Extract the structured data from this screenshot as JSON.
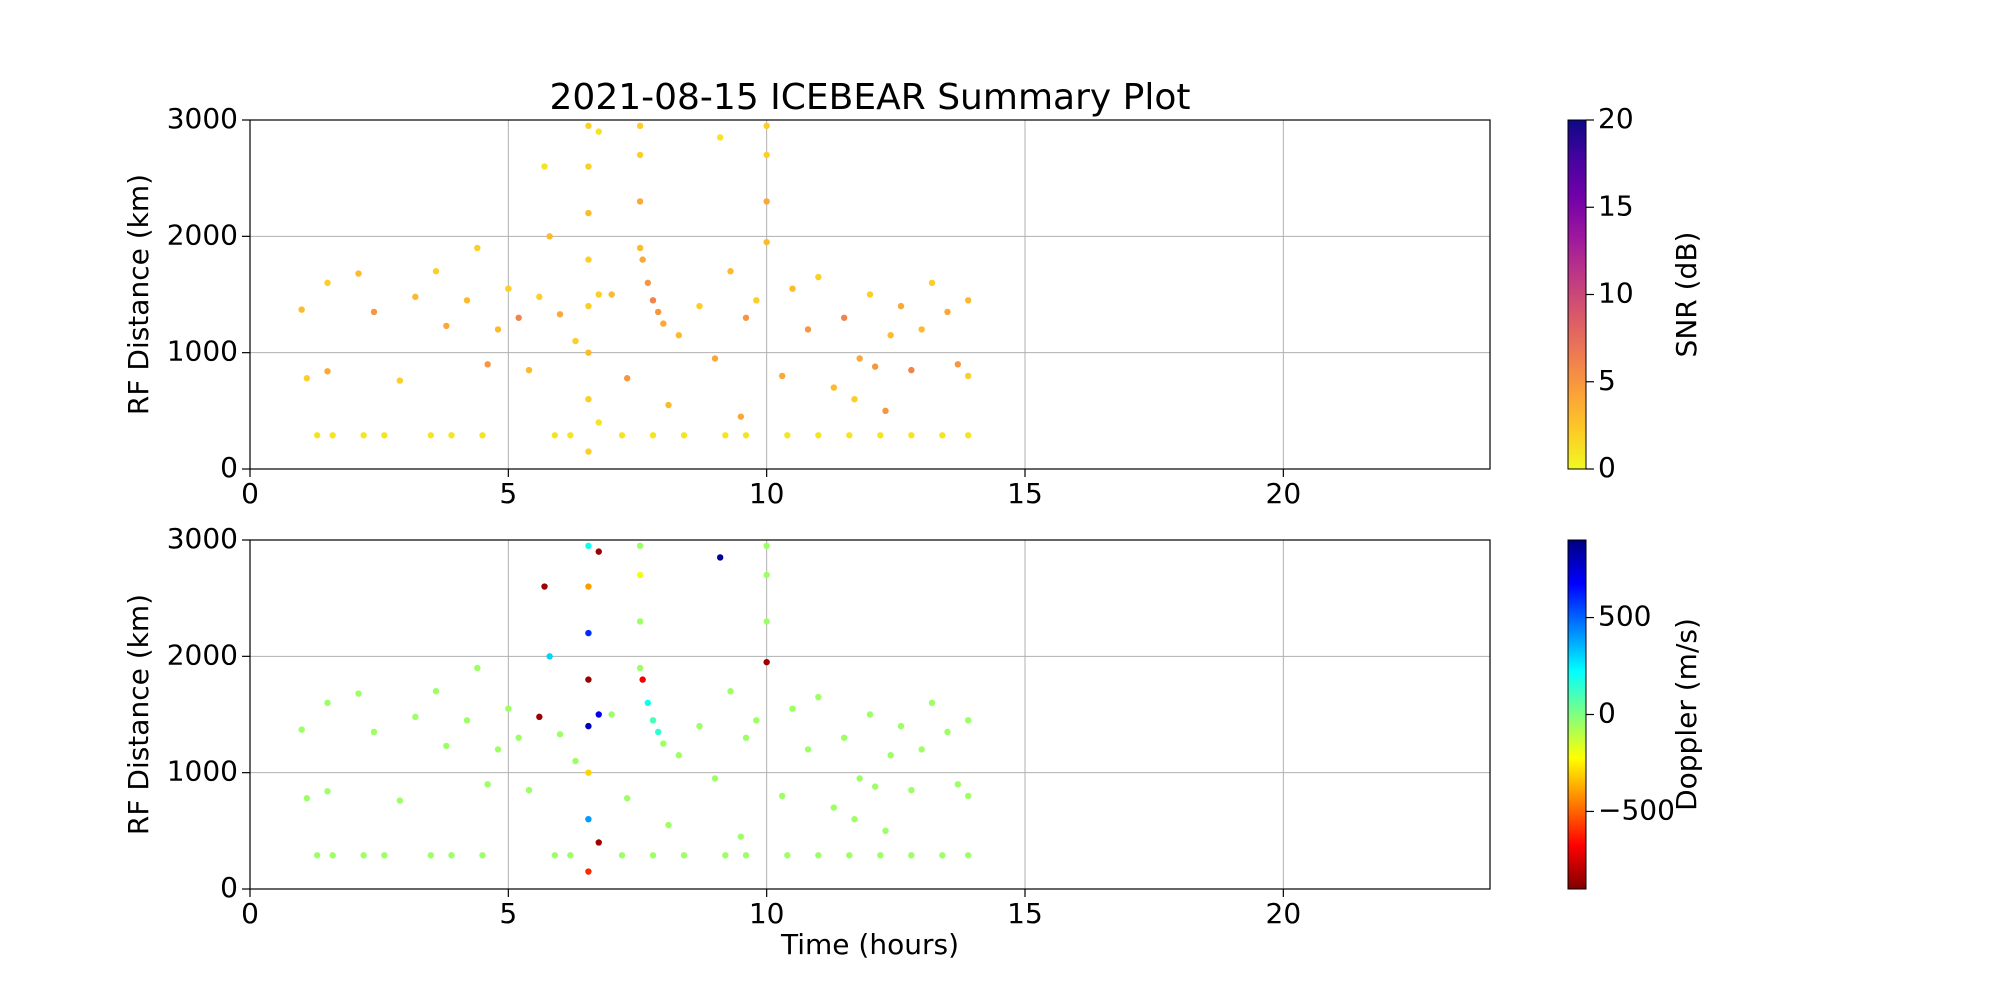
{
  "chart_data": [
    {
      "type": "scatter",
      "title": "2021-08-15 ICEBEAR Summary Plot",
      "ylabel": "RF Distance (km)",
      "xlim": [
        0,
        24
      ],
      "ylim": [
        0,
        3000
      ],
      "xticks": [
        0,
        5,
        10,
        15,
        20
      ],
      "yticks": [
        0,
        1000,
        2000,
        3000
      ],
      "grid": true,
      "x": [
        1.3,
        1.6,
        2.2,
        2.6,
        3.5,
        3.9,
        4.5,
        5.9,
        6.2,
        7.2,
        7.8,
        8.4,
        9.2,
        9.6,
        10.4,
        11.0,
        11.6,
        12.2,
        12.8,
        13.4,
        13.9,
        1.0,
        1.1,
        1.5,
        1.5,
        2.1,
        2.4,
        2.9,
        3.2,
        3.6,
        3.8,
        4.2,
        4.4,
        4.6,
        4.8,
        5.0,
        5.2,
        5.4,
        5.6,
        5.8,
        5.7,
        6.0,
        6.3,
        7.0,
        7.3,
        7.6,
        7.7,
        7.8,
        7.9,
        8.0,
        8.3,
        8.7,
        9.0,
        9.1,
        9.3,
        9.6,
        9.8,
        10.3,
        10.5,
        10.8,
        11.0,
        11.3,
        11.5,
        11.8,
        12.0,
        12.1,
        12.4,
        12.6,
        12.8,
        13.0,
        13.2,
        13.5,
        13.7,
        13.9,
        13.9,
        12.3,
        11.7,
        9.5,
        8.1,
        6.55,
        6.55,
        6.55,
        6.55,
        6.55,
        6.55,
        6.55,
        6.55,
        6.75,
        6.75,
        6.75,
        7.55,
        7.55,
        7.55,
        7.55,
        10.0,
        10.0,
        10.0,
        10.0
      ],
      "y": [
        290,
        290,
        290,
        290,
        290,
        290,
        290,
        290,
        290,
        290,
        290,
        290,
        290,
        290,
        290,
        290,
        290,
        290,
        290,
        290,
        290,
        1370,
        780,
        1600,
        840,
        1680,
        1350,
        760,
        1480,
        1700,
        1230,
        1450,
        1900,
        900,
        1200,
        1550,
        1300,
        850,
        1480,
        2000,
        2600,
        1330,
        1100,
        1500,
        780,
        1800,
        1600,
        1450,
        1350,
        1250,
        1150,
        1400,
        950,
        2850,
        1700,
        1300,
        1450,
        800,
        1550,
        1200,
        1650,
        700,
        1300,
        950,
        1500,
        880,
        1150,
        1400,
        850,
        1200,
        1600,
        1350,
        900,
        1450,
        800,
        500,
        600,
        450,
        550,
        150,
        600,
        1000,
        1400,
        1800,
        2200,
        2600,
        2950,
        400,
        1500,
        2900,
        1900,
        2300,
        2700,
        2950,
        1950,
        2300,
        2700,
        2950
      ],
      "color_values": [
        1,
        1,
        1,
        1,
        1,
        1,
        1,
        1,
        1,
        1,
        1,
        1,
        1,
        1,
        1,
        1,
        1,
        1,
        1,
        1,
        1,
        3,
        2,
        2,
        4,
        3,
        5,
        2,
        3,
        2,
        4,
        3,
        2,
        5,
        3,
        2,
        6,
        3,
        2,
        3,
        1,
        4,
        2,
        3,
        5,
        4,
        5,
        6,
        5,
        4,
        3,
        2,
        4,
        1,
        3,
        5,
        2,
        4,
        3,
        5,
        2,
        3,
        6,
        4,
        2,
        5,
        3,
        4,
        6,
        3,
        2,
        4,
        5,
        3,
        2,
        5,
        2,
        4,
        3,
        2,
        2,
        3,
        2,
        2,
        3,
        2,
        2,
        1,
        2,
        1,
        3,
        4,
        2,
        2,
        3,
        4,
        2,
        2
      ],
      "colorbar": {
        "label": "SNR (dB)",
        "lim": [
          0,
          20
        ],
        "ticks": [
          0,
          5,
          10,
          15,
          20
        ],
        "colormap": [
          "#f0f921",
          "#fdca26",
          "#fb9f3a",
          "#ed7953",
          "#d8576b",
          "#bd3786",
          "#9c179e",
          "#7201a8",
          "#46039f",
          "#0d0887"
        ]
      }
    },
    {
      "type": "scatter",
      "xlabel": "Time (hours)",
      "ylabel": "RF Distance (km)",
      "xlim": [
        0,
        24
      ],
      "ylim": [
        0,
        3000
      ],
      "xticks": [
        0,
        5,
        10,
        15,
        20
      ],
      "yticks": [
        0,
        1000,
        2000,
        3000
      ],
      "grid": true,
      "x": [
        1.3,
        1.6,
        2.2,
        2.6,
        3.5,
        3.9,
        4.5,
        5.9,
        6.2,
        7.2,
        7.8,
        8.4,
        9.2,
        9.6,
        10.4,
        11.0,
        11.6,
        12.2,
        12.8,
        13.4,
        13.9,
        1.0,
        1.1,
        1.5,
        1.5,
        2.1,
        2.4,
        2.9,
        3.2,
        3.6,
        3.8,
        4.2,
        4.4,
        4.6,
        4.8,
        5.0,
        5.2,
        5.4,
        5.6,
        5.8,
        5.7,
        6.0,
        6.3,
        7.0,
        7.3,
        7.6,
        7.7,
        7.8,
        7.9,
        8.0,
        8.3,
        8.7,
        9.0,
        9.1,
        9.3,
        9.6,
        9.8,
        10.3,
        10.5,
        10.8,
        11.0,
        11.3,
        11.5,
        11.8,
        12.0,
        12.1,
        12.4,
        12.6,
        12.8,
        13.0,
        13.2,
        13.5,
        13.7,
        13.9,
        13.9,
        12.3,
        11.7,
        9.5,
        8.1,
        6.55,
        6.55,
        6.55,
        6.55,
        6.55,
        6.55,
        6.55,
        6.55,
        6.75,
        6.75,
        6.75,
        7.55,
        7.55,
        7.55,
        7.55,
        10.0,
        10.0,
        10.0,
        10.0
      ],
      "y": [
        290,
        290,
        290,
        290,
        290,
        290,
        290,
        290,
        290,
        290,
        290,
        290,
        290,
        290,
        290,
        290,
        290,
        290,
        290,
        290,
        290,
        1370,
        780,
        1600,
        840,
        1680,
        1350,
        760,
        1480,
        1700,
        1230,
        1450,
        1900,
        900,
        1200,
        1550,
        1300,
        850,
        1480,
        2000,
        2600,
        1330,
        1100,
        1500,
        780,
        1800,
        1600,
        1450,
        1350,
        1250,
        1150,
        1400,
        950,
        2850,
        1700,
        1300,
        1450,
        800,
        1550,
        1200,
        1650,
        700,
        1300,
        950,
        1500,
        880,
        1150,
        1400,
        850,
        1200,
        1600,
        1350,
        900,
        1450,
        800,
        500,
        600,
        450,
        550,
        150,
        600,
        1000,
        1400,
        1800,
        2200,
        2600,
        2950,
        400,
        1500,
        2900,
        1900,
        2300,
        2700,
        2950,
        1950,
        2300,
        2700,
        2950
      ],
      "color_values": [
        -50,
        -50,
        -50,
        -50,
        -50,
        -50,
        -50,
        -50,
        -50,
        -50,
        -50,
        -50,
        -50,
        -50,
        -50,
        -50,
        -50,
        -50,
        -50,
        -50,
        -50,
        -50,
        -50,
        -50,
        -50,
        -50,
        -50,
        -50,
        -50,
        -50,
        -50,
        -50,
        -50,
        -50,
        -50,
        -50,
        -50,
        -50,
        -850,
        300,
        -850,
        -50,
        -50,
        -50,
        -50,
        -700,
        200,
        100,
        150,
        -50,
        -50,
        -50,
        -50,
        850,
        -50,
        -50,
        -50,
        -50,
        -50,
        -50,
        -50,
        -50,
        -50,
        -50,
        -50,
        -50,
        -50,
        -50,
        -50,
        -50,
        -50,
        -50,
        -50,
        -50,
        -50,
        -50,
        -50,
        -50,
        -50,
        -600,
        400,
        -300,
        800,
        -850,
        600,
        -400,
        200,
        -850,
        700,
        -850,
        -50,
        -50,
        -200,
        -50,
        -850,
        -50,
        -50,
        -50
      ],
      "colorbar": {
        "label": "Doppler (m/s)",
        "lim": [
          -900,
          900
        ],
        "ticks": [
          {
            "value": -500,
            "label": "−500"
          },
          0,
          500
        ],
        "colormap": [
          "#800000",
          "#ff0000",
          "#ff8000",
          "#ffff00",
          "#80ff80",
          "#00ffff",
          "#0080ff",
          "#0000ff",
          "#000080"
        ]
      }
    }
  ]
}
